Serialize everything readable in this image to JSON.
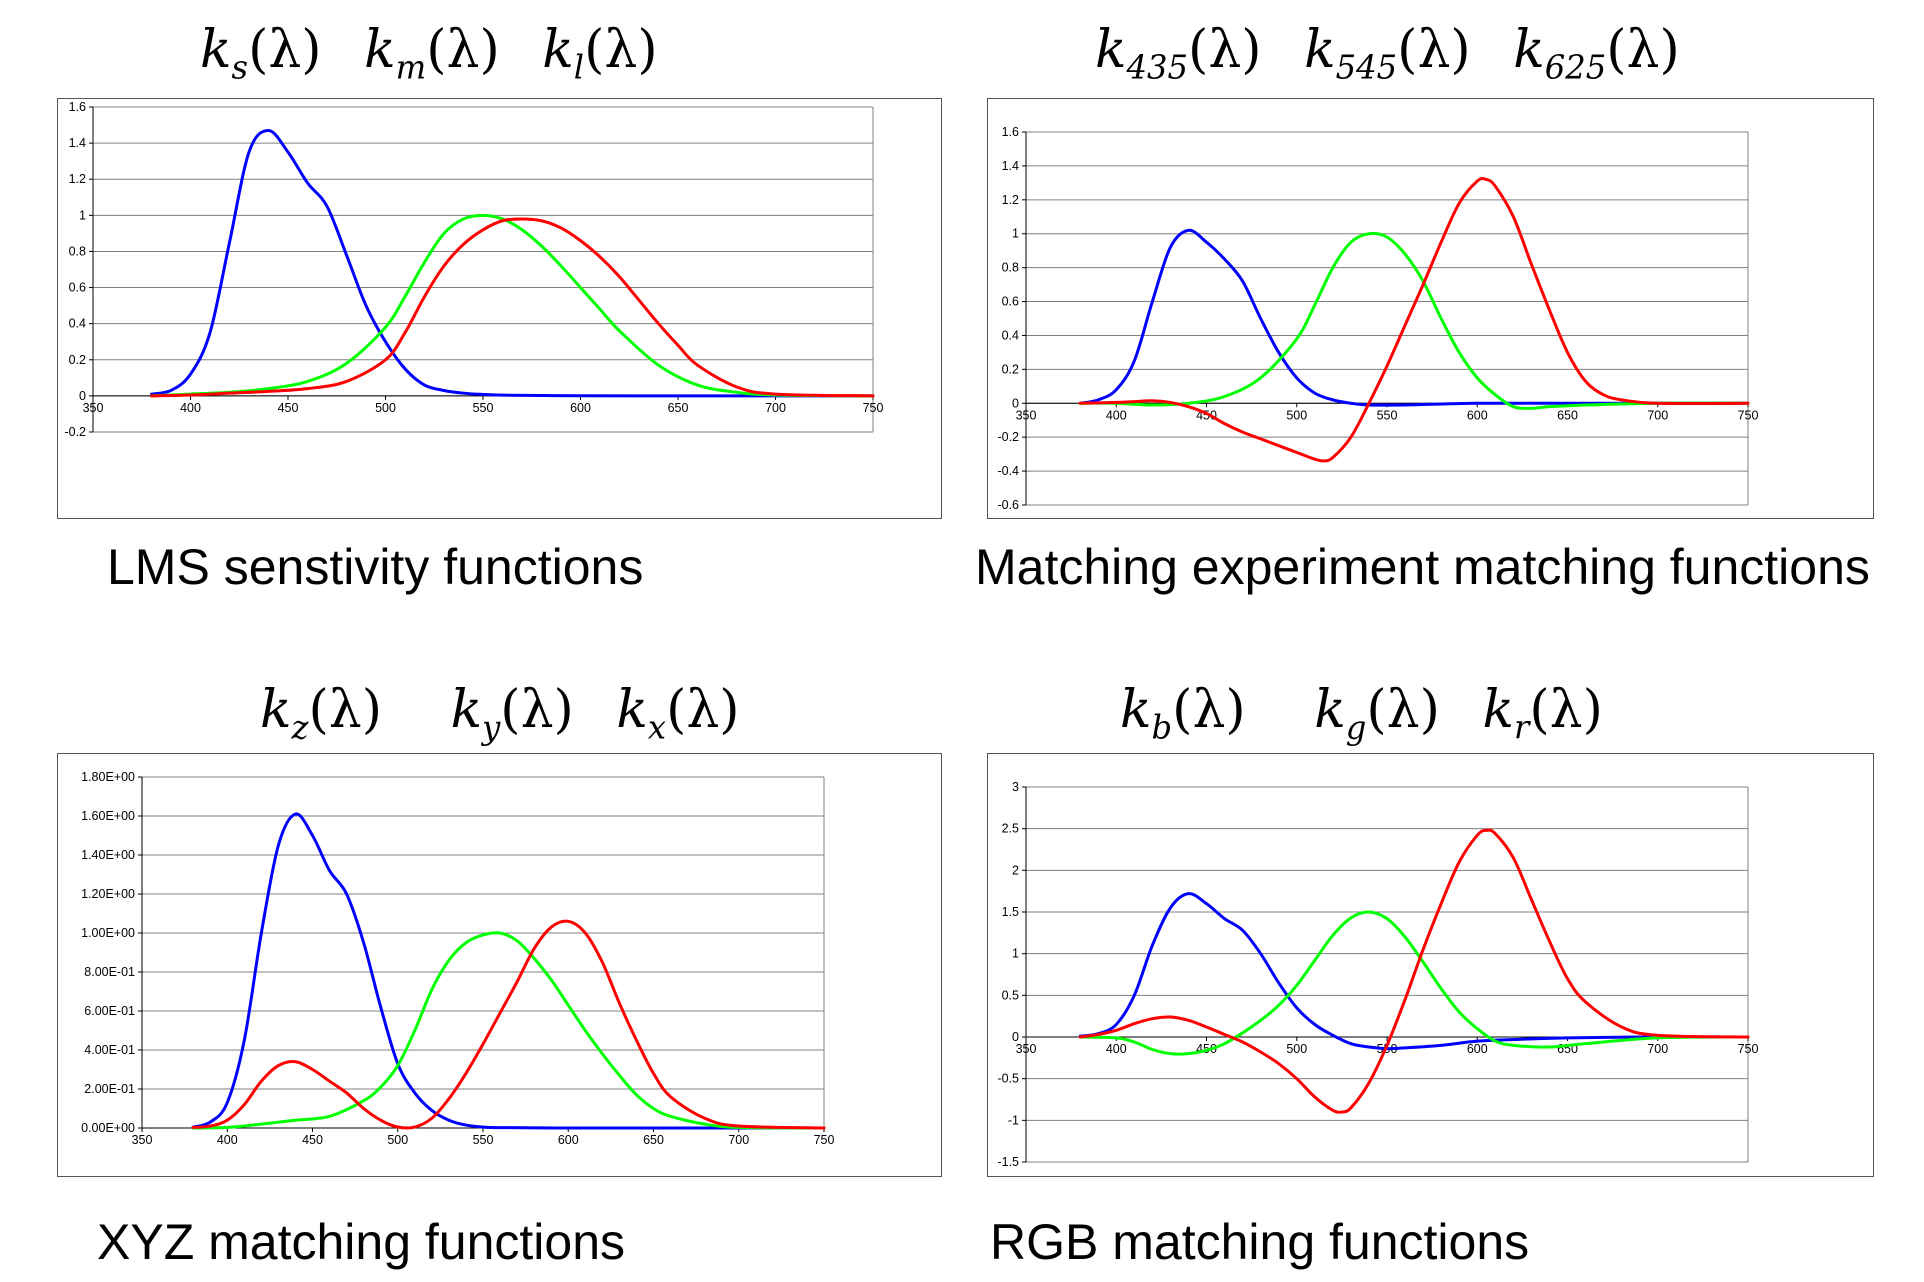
{
  "panels": [
    {
      "id": "lms",
      "terms": [
        {
          "base": "k",
          "sub": "s",
          "arg": "(λ)"
        },
        {
          "base": "k",
          "sub": "m",
          "arg": "(λ)"
        },
        {
          "base": "k",
          "sub": "l",
          "arg": "(λ)"
        }
      ],
      "caption": "LMS senstivity functions"
    },
    {
      "id": "matching",
      "terms": [
        {
          "base": "k",
          "sub": "435",
          "arg": "(λ)"
        },
        {
          "base": "k",
          "sub": "545",
          "arg": "(λ)"
        },
        {
          "base": "k",
          "sub": "625",
          "arg": "(λ)"
        }
      ],
      "caption": "Matching experiment matching functions"
    },
    {
      "id": "xyz",
      "terms": [
        {
          "base": "k",
          "sub": "z",
          "arg": "(λ)"
        },
        {
          "base": "k",
          "sub": "y",
          "arg": "(λ)"
        },
        {
          "base": "k",
          "sub": "x",
          "arg": "(λ)"
        }
      ],
      "caption": "XYZ matching  functions"
    },
    {
      "id": "rgb",
      "terms": [
        {
          "base": "k",
          "sub": "b",
          "arg": "(λ)"
        },
        {
          "base": "k",
          "sub": "g",
          "arg": "(λ)"
        },
        {
          "base": "k",
          "sub": "r",
          "arg": "(λ)"
        }
      ],
      "caption": "RGB matching functions"
    }
  ],
  "chart_data": [
    {
      "type": "line",
      "title": "",
      "xlabel": "",
      "ylabel": "",
      "xlim": [
        350,
        750
      ],
      "ylim": [
        -0.2,
        1.6
      ],
      "xticks": [
        "350",
        "400",
        "450",
        "500",
        "550",
        "600",
        "650",
        "700",
        "750"
      ],
      "yticks": [
        "-0.2",
        "0",
        "0.2",
        "0.4",
        "0.6",
        "0.8",
        "1",
        "1.2",
        "1.4",
        "1.6"
      ],
      "ytick_values": [
        -0.2,
        0,
        0.2,
        0.4,
        0.6,
        0.8,
        1,
        1.2,
        1.4,
        1.6
      ],
      "grid": true,
      "series": [
        {
          "color": "#0000ff",
          "x": [
            380,
            390,
            400,
            410,
            420,
            430,
            440,
            450,
            460,
            470,
            480,
            490,
            500,
            510,
            520,
            530,
            540,
            550,
            560,
            580,
            600,
            650,
            700,
            750
          ],
          "y": [
            0.01,
            0.03,
            0.12,
            0.35,
            0.85,
            1.35,
            1.47,
            1.35,
            1.18,
            1.05,
            0.78,
            0.5,
            0.3,
            0.15,
            0.06,
            0.03,
            0.015,
            0.008,
            0.004,
            0.002,
            0.001,
            0,
            0,
            0
          ]
        },
        {
          "color": "#00ff00",
          "x": [
            380,
            400,
            420,
            440,
            460,
            480,
            500,
            510,
            520,
            530,
            540,
            550,
            560,
            570,
            580,
            590,
            600,
            610,
            620,
            640,
            660,
            680,
            700,
            750
          ],
          "y": [
            0,
            0.01,
            0.02,
            0.04,
            0.08,
            0.18,
            0.38,
            0.55,
            0.74,
            0.9,
            0.98,
            1.0,
            0.98,
            0.92,
            0.83,
            0.72,
            0.6,
            0.48,
            0.36,
            0.17,
            0.06,
            0.02,
            0.005,
            0
          ]
        },
        {
          "color": "#ff0000",
          "x": [
            380,
            400,
            420,
            440,
            460,
            480,
            500,
            510,
            520,
            530,
            540,
            550,
            560,
            570,
            580,
            590,
            600,
            610,
            620,
            630,
            640,
            650,
            660,
            680,
            700,
            750
          ],
          "y": [
            0,
            0.005,
            0.015,
            0.025,
            0.04,
            0.08,
            0.2,
            0.35,
            0.55,
            0.72,
            0.84,
            0.92,
            0.97,
            0.98,
            0.97,
            0.93,
            0.86,
            0.77,
            0.66,
            0.53,
            0.4,
            0.28,
            0.17,
            0.05,
            0.01,
            0
          ]
        }
      ]
    },
    {
      "type": "line",
      "title": "",
      "xlabel": "",
      "ylabel": "",
      "xlim": [
        350,
        750
      ],
      "ylim": [
        -0.6,
        1.6
      ],
      "xticks": [
        "350",
        "400",
        "450",
        "500",
        "550",
        "600",
        "650",
        "700",
        "750"
      ],
      "yticks": [
        "-0.6",
        "-0.4",
        "-0.2",
        "0",
        "0.2",
        "0.4",
        "0.6",
        "0.8",
        "1",
        "1.2",
        "1.4",
        "1.6"
      ],
      "ytick_values": [
        -0.6,
        -0.4,
        -0.2,
        0,
        0.2,
        0.4,
        0.6,
        0.8,
        1,
        1.2,
        1.4,
        1.6
      ],
      "grid": true,
      "series": [
        {
          "color": "#0000ff",
          "x": [
            380,
            390,
            400,
            410,
            420,
            430,
            440,
            450,
            460,
            470,
            480,
            490,
            500,
            510,
            520,
            530,
            540,
            560,
            600,
            650,
            700,
            750
          ],
          "y": [
            0,
            0.02,
            0.08,
            0.25,
            0.6,
            0.92,
            1.02,
            0.95,
            0.85,
            0.72,
            0.5,
            0.3,
            0.15,
            0.06,
            0.02,
            0.0,
            -0.01,
            -0.01,
            0,
            0,
            0,
            0
          ]
        },
        {
          "color": "#00ff00",
          "x": [
            380,
            400,
            420,
            440,
            460,
            480,
            500,
            510,
            520,
            530,
            540,
            550,
            560,
            570,
            580,
            590,
            600,
            610,
            620,
            630,
            640,
            660,
            700,
            750
          ],
          "y": [
            0,
            0,
            -0.01,
            0.0,
            0.04,
            0.15,
            0.38,
            0.58,
            0.8,
            0.95,
            1.0,
            0.98,
            0.88,
            0.72,
            0.5,
            0.3,
            0.15,
            0.05,
            -0.02,
            -0.03,
            -0.02,
            -0.01,
            0,
            0
          ]
        },
        {
          "color": "#ff0000",
          "x": [
            380,
            400,
            410,
            420,
            430,
            440,
            450,
            460,
            470,
            480,
            490,
            500,
            510,
            515,
            520,
            530,
            540,
            550,
            560,
            570,
            580,
            590,
            600,
            605,
            610,
            620,
            630,
            640,
            650,
            660,
            670,
            680,
            700,
            750
          ],
          "y": [
            0,
            0.005,
            0.01,
            0.015,
            0.005,
            -0.02,
            -0.06,
            -0.12,
            -0.17,
            -0.21,
            -0.25,
            -0.29,
            -0.33,
            -0.34,
            -0.32,
            -0.2,
            0.0,
            0.22,
            0.46,
            0.7,
            0.95,
            1.18,
            1.31,
            1.32,
            1.28,
            1.1,
            0.82,
            0.55,
            0.3,
            0.13,
            0.05,
            0.02,
            0.0,
            0
          ]
        }
      ]
    },
    {
      "type": "line",
      "title": "",
      "xlabel": "",
      "ylabel": "",
      "xlim": [
        350,
        750
      ],
      "ylim": [
        0,
        1.8
      ],
      "xticks": [
        "350",
        "400",
        "450",
        "500",
        "550",
        "600",
        "650",
        "700",
        "750"
      ],
      "yticks": [
        "0.00E+00",
        "2.00E-01",
        "4.00E-01",
        "6.00E-01",
        "8.00E-01",
        "1.00E+00",
        "1.20E+00",
        "1.40E+00",
        "1.60E+00",
        "1.80E+00"
      ],
      "ytick_values": [
        0,
        0.2,
        0.4,
        0.6,
        0.8,
        1.0,
        1.2,
        1.4,
        1.6,
        1.8
      ],
      "grid": true,
      "series": [
        {
          "color": "#0000ff",
          "x": [
            380,
            390,
            400,
            410,
            420,
            430,
            440,
            450,
            460,
            470,
            480,
            490,
            500,
            510,
            520,
            530,
            540,
            550,
            560,
            600,
            650,
            700,
            750
          ],
          "y": [
            0.005,
            0.03,
            0.13,
            0.45,
            1.0,
            1.45,
            1.61,
            1.5,
            1.32,
            1.2,
            0.95,
            0.62,
            0.33,
            0.18,
            0.09,
            0.04,
            0.015,
            0.005,
            0.002,
            0,
            0,
            0,
            0
          ]
        },
        {
          "color": "#00ff00",
          "x": [
            380,
            400,
            420,
            440,
            460,
            480,
            490,
            500,
            510,
            520,
            530,
            540,
            550,
            560,
            570,
            580,
            590,
            600,
            610,
            620,
            630,
            640,
            650,
            660,
            680,
            700,
            750
          ],
          "y": [
            0,
            0.003,
            0.02,
            0.04,
            0.06,
            0.14,
            0.21,
            0.32,
            0.5,
            0.71,
            0.86,
            0.95,
            0.99,
            1.0,
            0.96,
            0.87,
            0.76,
            0.63,
            0.5,
            0.38,
            0.27,
            0.17,
            0.1,
            0.06,
            0.02,
            0.003,
            0
          ]
        },
        {
          "color": "#ff0000",
          "x": [
            380,
            390,
            400,
            410,
            420,
            430,
            440,
            450,
            460,
            470,
            480,
            490,
            500,
            510,
            520,
            530,
            540,
            550,
            560,
            570,
            580,
            590,
            600,
            610,
            620,
            630,
            640,
            650,
            660,
            680,
            700,
            750
          ],
          "y": [
            0.003,
            0.01,
            0.04,
            0.12,
            0.24,
            0.32,
            0.34,
            0.3,
            0.24,
            0.18,
            0.1,
            0.04,
            0.005,
            0.005,
            0.05,
            0.15,
            0.28,
            0.43,
            0.59,
            0.75,
            0.92,
            1.03,
            1.06,
            1.0,
            0.85,
            0.64,
            0.45,
            0.28,
            0.16,
            0.05,
            0.01,
            0
          ]
        }
      ]
    },
    {
      "type": "line",
      "title": "",
      "xlabel": "",
      "ylabel": "",
      "xlim": [
        350,
        750
      ],
      "ylim": [
        -1.5,
        3
      ],
      "xticks": [
        "350",
        "400",
        "450",
        "500",
        "550",
        "600",
        "650",
        "700",
        "750"
      ],
      "yticks": [
        "-1.5",
        "-1",
        "-0.5",
        "0",
        "0.5",
        "1",
        "1.5",
        "2",
        "2.5",
        "3"
      ],
      "ytick_values": [
        -1.5,
        -1,
        -0.5,
        0,
        0.5,
        1,
        1.5,
        2,
        2.5,
        3
      ],
      "grid": true,
      "series": [
        {
          "color": "#0000ff",
          "x": [
            380,
            390,
            400,
            410,
            420,
            430,
            440,
            450,
            460,
            470,
            480,
            490,
            500,
            510,
            520,
            530,
            540,
            550,
            560,
            580,
            600,
            620,
            650,
            700,
            750
          ],
          "y": [
            0.01,
            0.04,
            0.15,
            0.5,
            1.1,
            1.55,
            1.72,
            1.6,
            1.42,
            1.28,
            1.0,
            0.65,
            0.35,
            0.15,
            0.02,
            -0.08,
            -0.12,
            -0.14,
            -0.13,
            -0.1,
            -0.05,
            -0.03,
            -0.01,
            0,
            0
          ]
        },
        {
          "color": "#00ff00",
          "x": [
            380,
            400,
            410,
            420,
            430,
            440,
            450,
            460,
            470,
            480,
            490,
            500,
            510,
            520,
            530,
            540,
            550,
            560,
            570,
            580,
            590,
            600,
            610,
            620,
            640,
            660,
            700,
            750
          ],
          "y": [
            0,
            -0.01,
            -0.06,
            -0.15,
            -0.2,
            -0.2,
            -0.16,
            -0.08,
            0.05,
            0.2,
            0.38,
            0.62,
            0.92,
            1.22,
            1.43,
            1.5,
            1.42,
            1.2,
            0.9,
            0.58,
            0.3,
            0.1,
            -0.05,
            -0.1,
            -0.12,
            -0.08,
            -0.01,
            0
          ]
        },
        {
          "color": "#ff0000",
          "x": [
            380,
            390,
            400,
            410,
            420,
            430,
            440,
            450,
            460,
            470,
            480,
            490,
            500,
            510,
            520,
            525,
            530,
            540,
            550,
            560,
            570,
            580,
            590,
            600,
            605,
            610,
            620,
            630,
            640,
            650,
            660,
            680,
            700,
            750
          ],
          "y": [
            0,
            0.03,
            0.08,
            0.16,
            0.22,
            0.24,
            0.2,
            0.12,
            0.03,
            -0.06,
            -0.18,
            -0.32,
            -0.5,
            -0.72,
            -0.88,
            -0.9,
            -0.85,
            -0.55,
            -0.1,
            0.45,
            1.05,
            1.6,
            2.1,
            2.42,
            2.48,
            2.44,
            2.15,
            1.65,
            1.15,
            0.7,
            0.42,
            0.12,
            0.02,
            0
          ]
        }
      ]
    }
  ]
}
